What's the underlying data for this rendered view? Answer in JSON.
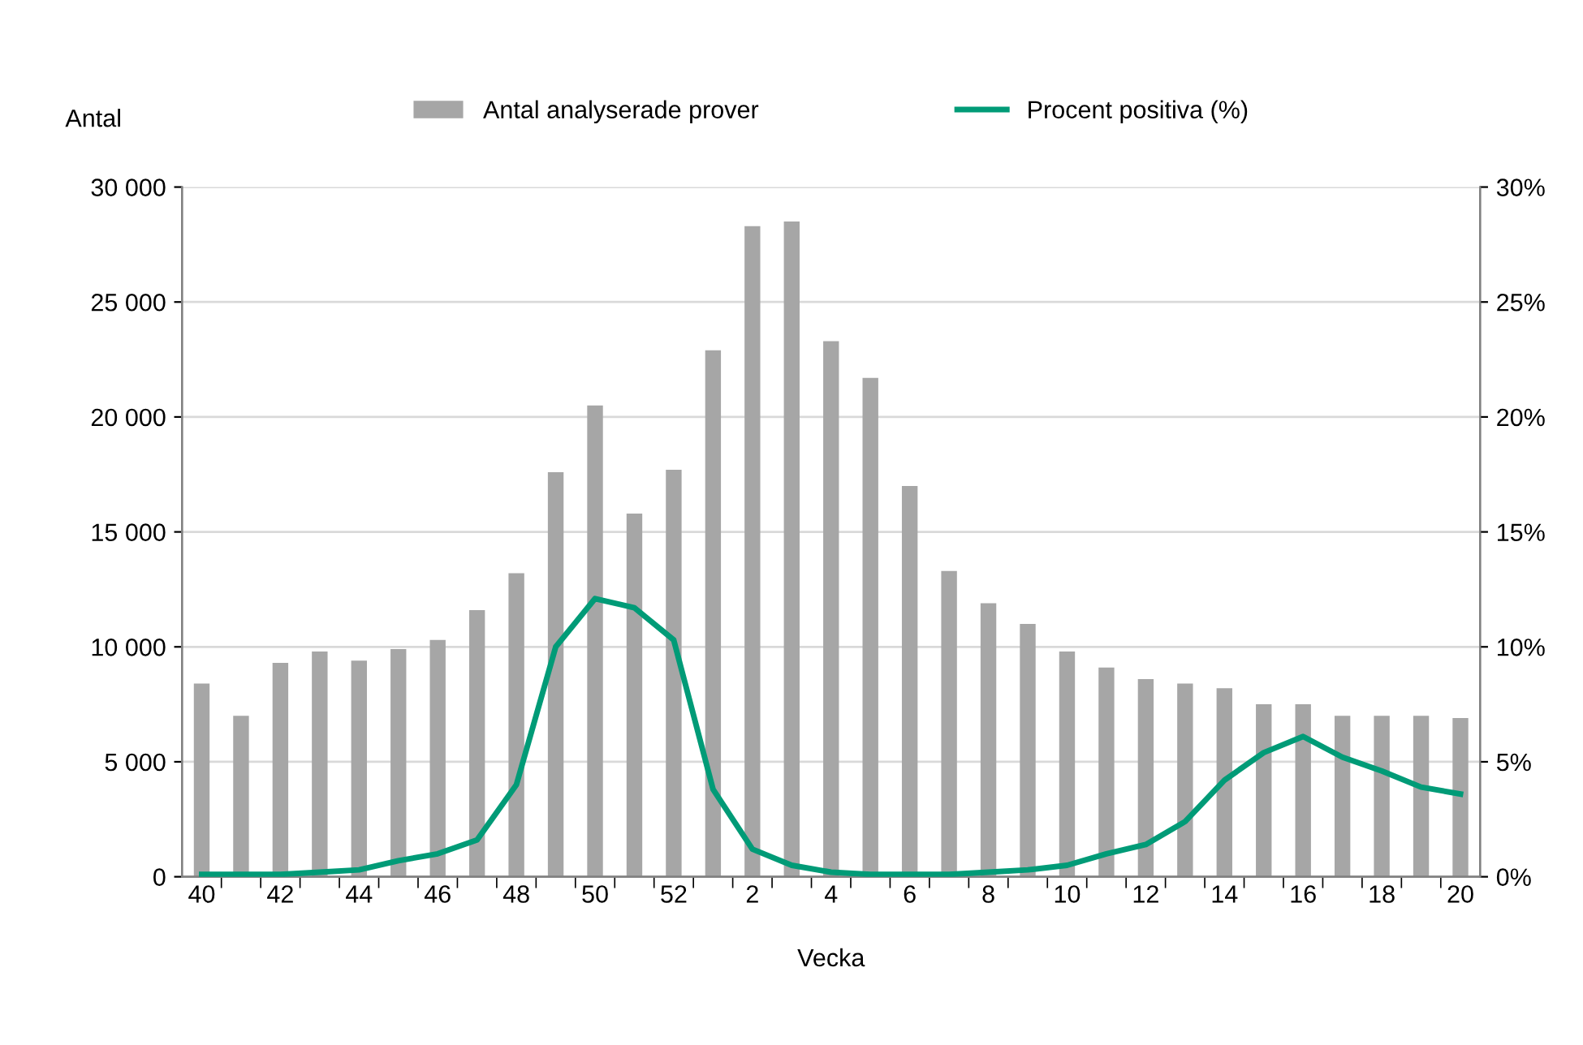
{
  "chart_data": {
    "type": "bar",
    "xlabel": "Vecka",
    "ylabel": "Antal",
    "categories": [
      "40",
      null,
      "42",
      null,
      "44",
      null,
      "46",
      null,
      "48",
      null,
      "50",
      null,
      "52",
      null,
      "2",
      null,
      "4",
      null,
      "6",
      null,
      "8",
      null,
      "10",
      null,
      "12",
      null,
      "14",
      null,
      "16",
      null,
      "18",
      null,
      "20"
    ],
    "series": [
      {
        "name": "Antal analyserade prover",
        "color": "#a6a6a6",
        "values": [
          8400,
          7000,
          9300,
          9800,
          9400,
          9900,
          10300,
          11600,
          13200,
          17600,
          20500,
          15800,
          17700,
          22900,
          28300,
          28500,
          23300,
          21700,
          17000,
          13300,
          11900,
          11000,
          9800,
          9100,
          8600,
          8400,
          8200,
          7500,
          7500,
          7000,
          7000,
          7000,
          6900
        ]
      },
      {
        "name": "Procent positiva (%)",
        "type": "line",
        "axis": "y2",
        "color": "#009b77",
        "values": [
          0.1,
          0.1,
          0.1,
          0.2,
          0.3,
          0.7,
          1.0,
          1.6,
          4.0,
          10.0,
          12.1,
          11.7,
          10.3,
          3.8,
          1.2,
          0.5,
          0.2,
          0.1,
          0.1,
          0.1,
          0.2,
          0.3,
          0.5,
          1.0,
          1.4,
          2.4,
          4.2,
          5.4,
          6.1,
          5.2,
          4.6,
          3.9,
          3.6
        ]
      }
    ],
    "ylim": [
      0,
      30000
    ],
    "yticks": [
      {
        "value": 0,
        "label": "0"
      },
      {
        "value": 5000,
        "label": "5 000"
      },
      {
        "value": 10000,
        "label": "10 000"
      },
      {
        "value": 15000,
        "label": "15 000"
      },
      {
        "value": 20000,
        "label": "20 000"
      },
      {
        "value": 25000,
        "label": "25 000"
      },
      {
        "value": 30000,
        "label": "30 000"
      }
    ],
    "y2lim": [
      0,
      30
    ],
    "y2ticks": [
      {
        "value": 0,
        "label": "0%"
      },
      {
        "value": 5,
        "label": "5%"
      },
      {
        "value": 10,
        "label": "10%"
      },
      {
        "value": 15,
        "label": "15%"
      },
      {
        "value": 20,
        "label": "20%"
      },
      {
        "value": 25,
        "label": "25%"
      },
      {
        "value": 30,
        "label": "30%"
      }
    ],
    "grid": "y",
    "legend": "top",
    "marker": "none",
    "line_style": "solid"
  }
}
